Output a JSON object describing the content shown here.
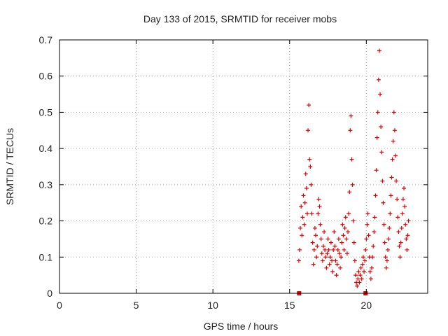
{
  "chart_data": {
    "type": "scatter",
    "title": "Day 133 of 2015, SRMTID for receiver mobs",
    "xlabel": "GPS time / hours",
    "ylabel": "SRMTID / TECUs",
    "xlim": [
      0,
      24
    ],
    "ylim": [
      0,
      0.7
    ],
    "xticks": [
      0,
      5,
      10,
      15,
      20
    ],
    "xtick_labels": [
      "0",
      "5",
      "10",
      "15",
      "20"
    ],
    "yticks": [
      0,
      0.1,
      0.2,
      0.3,
      0.4,
      0.5,
      0.6,
      0.7
    ],
    "ytick_labels": [
      "0",
      "0.1",
      "0.2",
      "0.3",
      "0.4",
      "0.5",
      "0.6",
      "0.7"
    ],
    "grid": true,
    "marker": "+",
    "series": [
      {
        "name": "SRMTID",
        "color": "#dd0000",
        "points": [
          [
            15.6,
            0.09
          ],
          [
            15.65,
            0.12
          ],
          [
            15.7,
            0.18
          ],
          [
            15.75,
            0.24
          ],
          [
            15.8,
            0.16
          ],
          [
            15.85,
            0.21
          ],
          [
            15.9,
            0.27
          ],
          [
            15.95,
            0.19
          ],
          [
            16.0,
            0.25
          ],
          [
            16.05,
            0.33
          ],
          [
            16.1,
            0.29
          ],
          [
            16.15,
            0.22
          ],
          [
            16.2,
            0.45
          ],
          [
            16.25,
            0.52
          ],
          [
            16.3,
            0.37
          ],
          [
            16.35,
            0.35
          ],
          [
            16.4,
            0.3
          ],
          [
            16.45,
            0.22
          ],
          [
            16.5,
            0.14
          ],
          [
            16.55,
            0.08
          ],
          [
            16.6,
            0.12
          ],
          [
            16.65,
            0.18
          ],
          [
            16.7,
            0.16
          ],
          [
            16.75,
            0.1
          ],
          [
            16.8,
            0.13
          ],
          [
            16.85,
            0.22
          ],
          [
            16.9,
            0.26
          ],
          [
            16.95,
            0.24
          ],
          [
            17.0,
            0.19
          ],
          [
            17.05,
            0.15
          ],
          [
            17.1,
            0.11
          ],
          [
            17.15,
            0.09
          ],
          [
            17.2,
            0.13
          ],
          [
            17.25,
            0.17
          ],
          [
            17.3,
            0.12
          ],
          [
            17.35,
            0.1
          ],
          [
            17.4,
            0.07
          ],
          [
            17.45,
            0.11
          ],
          [
            17.5,
            0.15
          ],
          [
            17.55,
            0.12
          ],
          [
            17.6,
            0.08
          ],
          [
            17.65,
            0.1
          ],
          [
            17.7,
            0.14
          ],
          [
            17.75,
            0.09
          ],
          [
            17.8,
            0.06
          ],
          [
            17.85,
            0.12
          ],
          [
            17.9,
            0.17
          ],
          [
            17.95,
            0.13
          ],
          [
            18.0,
            0.09
          ],
          [
            18.05,
            0.05
          ],
          [
            18.1,
            0.08
          ],
          [
            18.15,
            0.12
          ],
          [
            18.2,
            0.15
          ],
          [
            18.25,
            0.11
          ],
          [
            18.3,
            0.07
          ],
          [
            18.35,
            0.1
          ],
          [
            18.4,
            0.14
          ],
          [
            18.45,
            0.19
          ],
          [
            18.5,
            0.16
          ],
          [
            18.55,
            0.12
          ],
          [
            18.6,
            0.18
          ],
          [
            18.65,
            0.21
          ],
          [
            18.7,
            0.15
          ],
          [
            18.75,
            0.11
          ],
          [
            18.8,
            0.17
          ],
          [
            18.85,
            0.22
          ],
          [
            18.9,
            0.28
          ],
          [
            18.95,
            0.45
          ],
          [
            19.0,
            0.49
          ],
          [
            19.05,
            0.37
          ],
          [
            19.1,
            0.3
          ],
          [
            19.15,
            0.2
          ],
          [
            19.2,
            0.14
          ],
          [
            19.25,
            0.09
          ],
          [
            19.3,
            0.05
          ],
          [
            19.35,
            0.03
          ],
          [
            19.4,
            0.02
          ],
          [
            19.45,
            0.04
          ],
          [
            19.5,
            0.06
          ],
          [
            19.55,
            0.03
          ],
          [
            19.6,
            0.05
          ],
          [
            19.65,
            0.07
          ],
          [
            19.7,
            0.04
          ],
          [
            19.75,
            0.08
          ],
          [
            19.8,
            0.1
          ],
          [
            19.85,
            0.06
          ],
          [
            19.9,
            0.09
          ],
          [
            19.95,
            0.12
          ],
          [
            20.0,
            0.15
          ],
          [
            20.05,
            0.19
          ],
          [
            20.1,
            0.22
          ],
          [
            20.15,
            0.16
          ],
          [
            20.2,
            0.1
          ],
          [
            20.25,
            0.06
          ],
          [
            20.3,
            0.04
          ],
          [
            20.35,
            0.07
          ],
          [
            20.4,
            0.1
          ],
          [
            20.45,
            0.13
          ],
          [
            20.5,
            0.17
          ],
          [
            20.55,
            0.21
          ],
          [
            20.6,
            0.27
          ],
          [
            20.65,
            0.34
          ],
          [
            20.7,
            0.43
          ],
          [
            20.75,
            0.5
          ],
          [
            20.8,
            0.59
          ],
          [
            20.85,
            0.67
          ],
          [
            20.9,
            0.55
          ],
          [
            20.95,
            0.46
          ],
          [
            21.0,
            0.39
          ],
          [
            21.05,
            0.31
          ],
          [
            21.1,
            0.25
          ],
          [
            21.15,
            0.19
          ],
          [
            21.2,
            0.14
          ],
          [
            21.25,
            0.1
          ],
          [
            21.3,
            0.07
          ],
          [
            21.35,
            0.09
          ],
          [
            21.4,
            0.12
          ],
          [
            21.45,
            0.15
          ],
          [
            21.5,
            0.18
          ],
          [
            21.55,
            0.22
          ],
          [
            21.6,
            0.27
          ],
          [
            21.65,
            0.32
          ],
          [
            21.7,
            0.37
          ],
          [
            21.75,
            0.42
          ],
          [
            21.8,
            0.5
          ],
          [
            21.85,
            0.45
          ],
          [
            21.9,
            0.38
          ],
          [
            21.95,
            0.31
          ],
          [
            22.0,
            0.26
          ],
          [
            22.05,
            0.21
          ],
          [
            22.1,
            0.17
          ],
          [
            22.15,
            0.13
          ],
          [
            22.2,
            0.1
          ],
          [
            22.25,
            0.14
          ],
          [
            22.3,
            0.18
          ],
          [
            22.35,
            0.22
          ],
          [
            22.4,
            0.26
          ],
          [
            22.45,
            0.29
          ],
          [
            22.5,
            0.24
          ],
          [
            22.55,
            0.19
          ],
          [
            22.6,
            0.15
          ],
          [
            22.65,
            0.12
          ],
          [
            22.7,
            0.16
          ],
          [
            22.75,
            0.2
          ]
        ],
        "baseline_points": [
          [
            15.62,
            0.0
          ],
          [
            19.95,
            0.0
          ]
        ]
      }
    ]
  }
}
